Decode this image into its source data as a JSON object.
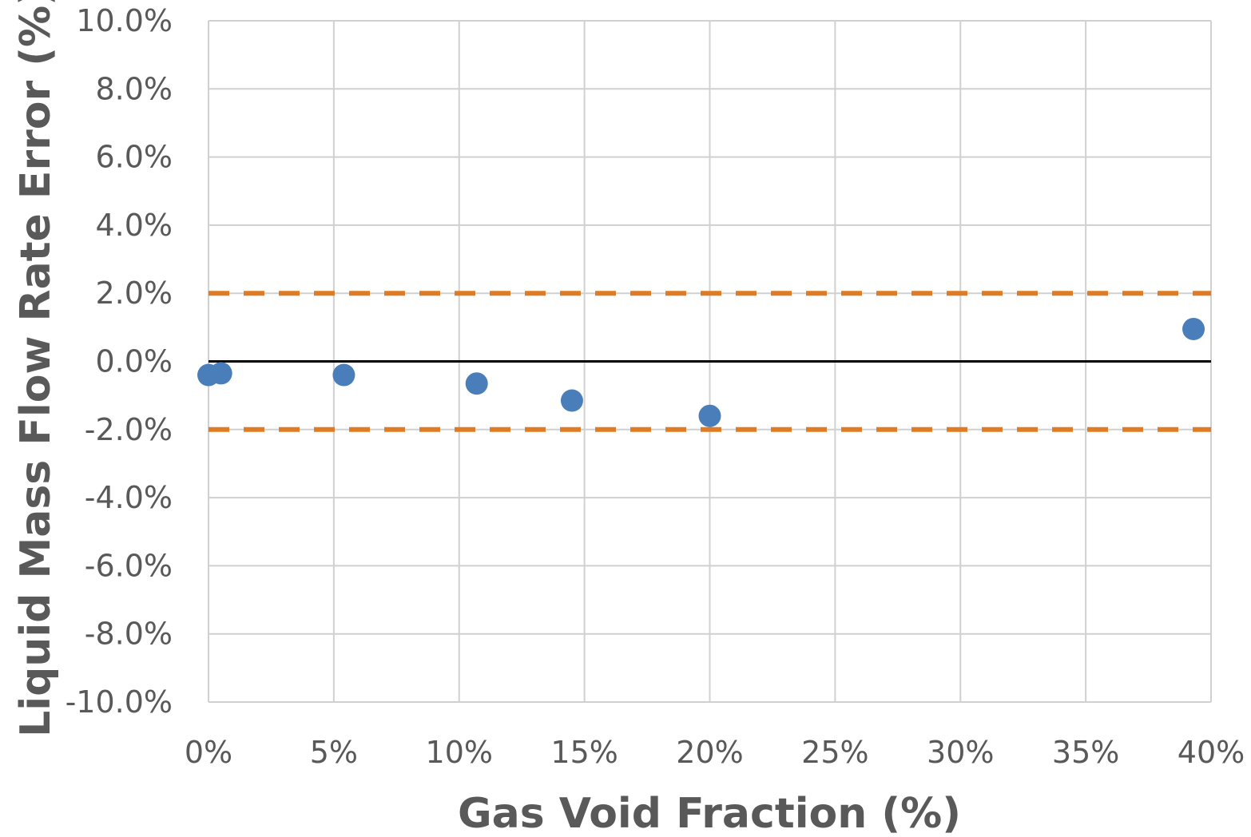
{
  "chart_data": {
    "type": "scatter",
    "title": "",
    "xlabel": "Gas Void Fraction (%)",
    "ylabel": "Liquid Mass Flow Rate Error (%)",
    "xlim": [
      0,
      40
    ],
    "ylim": [
      -10,
      10
    ],
    "x_ticks": [
      0,
      5,
      10,
      15,
      20,
      25,
      30,
      35,
      40
    ],
    "x_tick_labels": [
      "0%",
      "5%",
      "10%",
      "15%",
      "20%",
      "25%",
      "30%",
      "35%",
      "40%"
    ],
    "y_ticks": [
      10,
      8,
      6,
      4,
      2,
      0,
      -2,
      -4,
      -6,
      -8,
      -10
    ],
    "y_tick_labels": [
      "10.0%",
      "8.0%",
      "6.0%",
      "4.0%",
      "2.0%",
      "0.0%",
      "-2.0%",
      "-4.0%",
      "-6.0%",
      "-8.0%",
      "-10.0%"
    ],
    "grid": true,
    "series": [
      {
        "color": "#4a7ebb",
        "points": [
          {
            "x": 0.0,
            "y": -0.4
          },
          {
            "x": 0.5,
            "y": -0.35
          },
          {
            "x": 5.4,
            "y": -0.4
          },
          {
            "x": 10.7,
            "y": -0.65
          },
          {
            "x": 14.5,
            "y": -1.15
          },
          {
            "x": 20.0,
            "y": -1.6
          },
          {
            "x": 39.3,
            "y": 0.95
          }
        ]
      }
    ],
    "reference_lines": [
      {
        "y": 2.0,
        "style": "dashed",
        "color": "#e07b24"
      },
      {
        "y": -2.0,
        "style": "dashed",
        "color": "#e07b24"
      },
      {
        "y": 0.0,
        "style": "solid",
        "color": "#000000"
      }
    ],
    "colors": {
      "grid": "#d0d0d0",
      "text": "#595959"
    }
  }
}
